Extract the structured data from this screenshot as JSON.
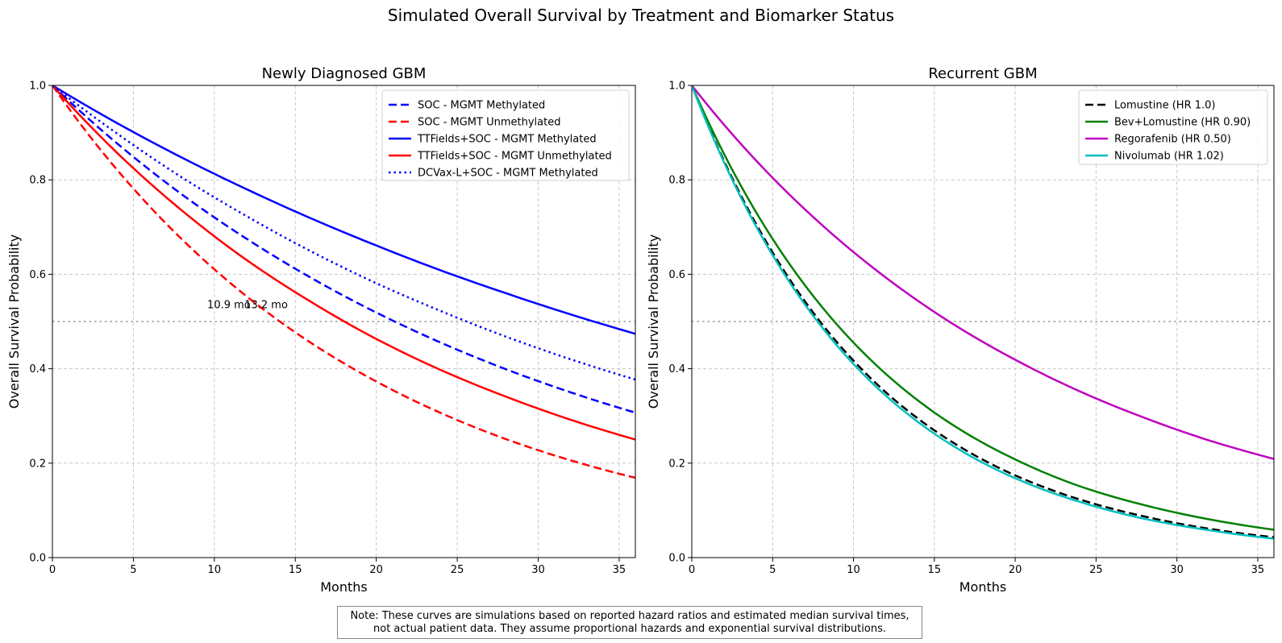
{
  "suptitle": "Simulated Overall Survival by Treatment and Biomarker Status",
  "note": {
    "line1": "Note: These curves are simulations based on reported hazard ratios and estimated median survival times,",
    "line2": "not actual patient data. They assume proportional hazards and exponential survival distributions."
  },
  "chart_data": [
    {
      "type": "line",
      "title": "Newly Diagnosed GBM",
      "xlabel": "Months",
      "ylabel": "Overall Survival Probability",
      "xlim": [
        0,
        36
      ],
      "ylim": [
        0,
        1.0
      ],
      "xticks": [
        "0",
        "5",
        "10",
        "15",
        "20",
        "25",
        "30",
        "35"
      ],
      "yticks": [
        "0.0",
        "0.2",
        "0.4",
        "0.6",
        "0.8",
        "1.0"
      ],
      "grid": true,
      "legend_position": "top-right",
      "reference_line": {
        "y": 0.5,
        "style": "dotted",
        "color": "#999999"
      },
      "annotations": [
        {
          "text": "10.9 mo",
          "x": 10.9,
          "y": 0.52
        },
        {
          "text": "13.2 mo",
          "x": 13.2,
          "y": 0.52
        }
      ],
      "x": [
        0,
        4,
        8,
        12,
        16,
        20,
        24,
        28,
        32,
        36
      ],
      "series": [
        {
          "name": "SOC - MGMT Methylated",
          "color": "#0000ff",
          "style": "dashed",
          "values": [
            1.0,
            0.877,
            0.769,
            0.675,
            0.592,
            0.519,
            0.455,
            0.399,
            0.35,
            0.307
          ]
        },
        {
          "name": "SOC - MGMT Unmethylated",
          "color": "#ff0000",
          "style": "dashed",
          "values": [
            1.0,
            0.821,
            0.674,
            0.553,
            0.454,
            0.373,
            0.306,
            0.251,
            0.206,
            0.169
          ]
        },
        {
          "name": "TTFields+SOC - MGMT Methylated",
          "color": "#0000ff",
          "style": "solid",
          "values": [
            1.0,
            0.92,
            0.847,
            0.78,
            0.718,
            0.661,
            0.608,
            0.56,
            0.515,
            0.474
          ]
        },
        {
          "name": "TTFields+SOC - MGMT Unmethylated",
          "color": "#ff0000",
          "style": "solid",
          "values": [
            1.0,
            0.857,
            0.735,
            0.63,
            0.541,
            0.463,
            0.397,
            0.341,
            0.292,
            0.25
          ]
        },
        {
          "name": "DCVax-L+SOC - MGMT Methylated",
          "color": "#0000ff",
          "style": "dotted",
          "values": [
            1.0,
            0.898,
            0.805,
            0.723,
            0.648,
            0.581,
            0.522,
            0.468,
            0.42,
            0.377
          ]
        }
      ]
    },
    {
      "type": "line",
      "title": "Recurrent GBM",
      "xlabel": "Months",
      "ylabel": "Overall Survival Probability",
      "xlim": [
        0,
        36
      ],
      "ylim": [
        0,
        1.0
      ],
      "xticks": [
        "0",
        "5",
        "10",
        "15",
        "20",
        "25",
        "30",
        "35"
      ],
      "yticks": [
        "0.0",
        "0.2",
        "0.4",
        "0.6",
        "0.8",
        "1.0"
      ],
      "grid": true,
      "legend_position": "top-right",
      "reference_line": {
        "y": 0.5,
        "style": "dotted",
        "color": "#999999"
      },
      "annotations": [],
      "x": [
        0,
        4,
        8,
        12,
        16,
        20,
        24,
        28,
        32,
        36
      ],
      "series": [
        {
          "name": "Lomustine (HR 1.0)",
          "color": "#000000",
          "style": "dashed",
          "values": [
            1.0,
            0.705,
            0.497,
            0.35,
            0.247,
            0.174,
            0.123,
            0.087,
            0.061,
            0.043
          ]
        },
        {
          "name": "Bev+Lomustine (HR 0.90)",
          "color": "#008000",
          "style": "solid",
          "values": [
            1.0,
            0.73,
            0.533,
            0.389,
            0.284,
            0.208,
            0.151,
            0.111,
            0.081,
            0.059
          ]
        },
        {
          "name": "Regorafenib (HR 0.50)",
          "color": "#bf00bf",
          "style": "solid",
          "values": [
            1.0,
            0.84,
            0.706,
            0.593,
            0.498,
            0.419,
            0.352,
            0.296,
            0.248,
            0.209
          ]
        },
        {
          "name": "Nivolumab (HR 1.02)",
          "color": "#00bfbf",
          "style": "solid",
          "values": [
            1.0,
            0.7,
            0.49,
            0.343,
            0.24,
            0.168,
            0.118,
            0.082,
            0.058,
            0.04
          ]
        }
      ]
    }
  ]
}
